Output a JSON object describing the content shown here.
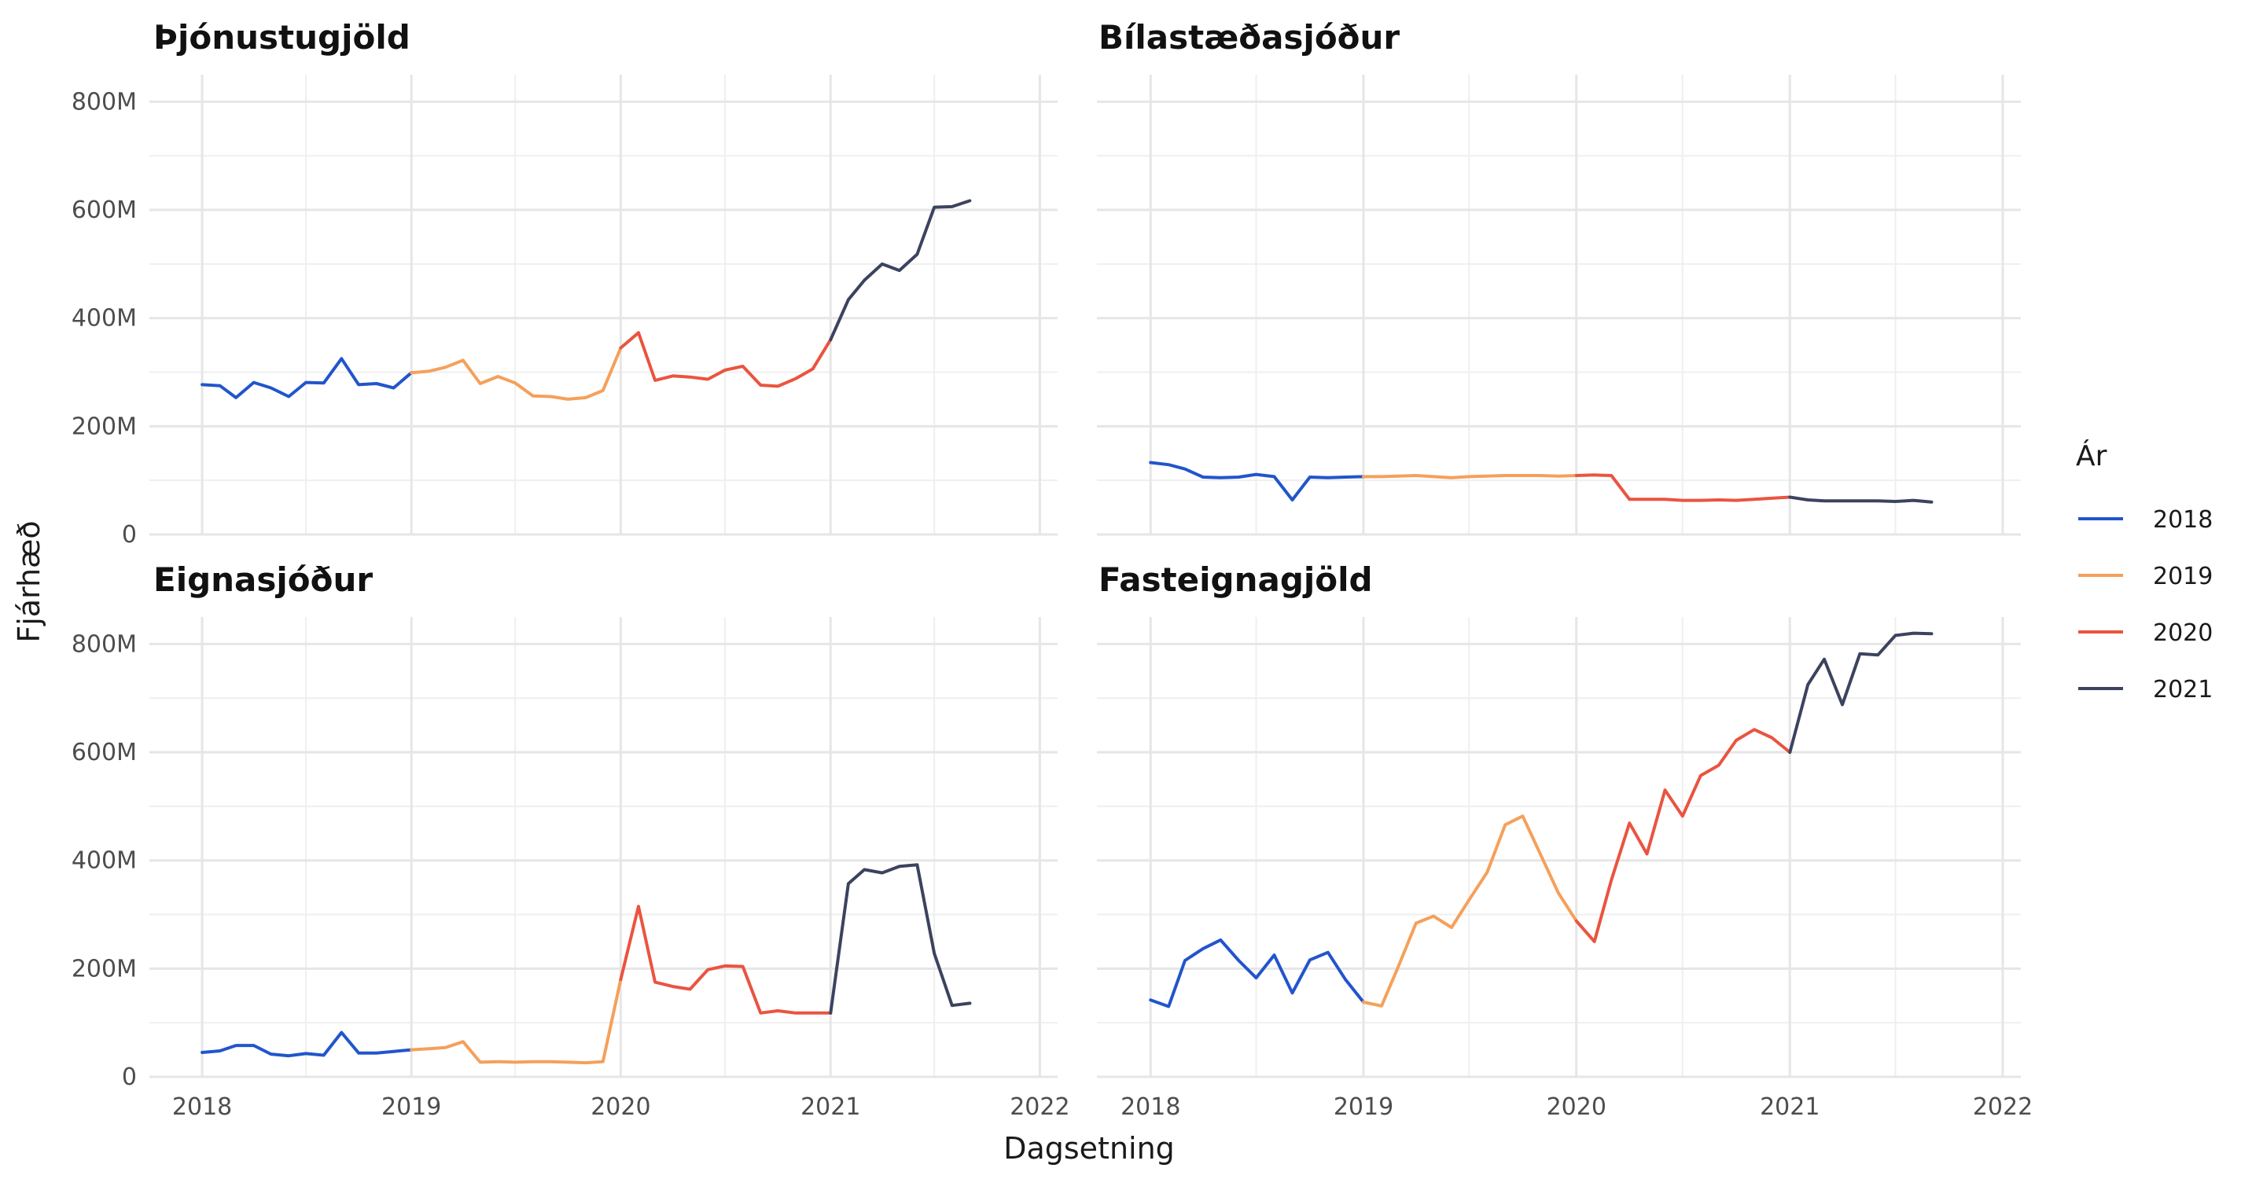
{
  "chart_data": {
    "type": "line",
    "xlabel": "Dagsetning",
    "ylabel": "Fjárhæð",
    "xlim": [
      "2017-10-01",
      "2022-02-01"
    ],
    "ylim": [
      0,
      850
    ],
    "x_ticks": [
      "2018",
      "2019",
      "2020",
      "2021",
      "2022"
    ],
    "y_ticks": [
      "0",
      "200M",
      "400M",
      "600M",
      "800M"
    ],
    "grid": true,
    "legend": {
      "title": "Ár",
      "position": "right",
      "entries": [
        {
          "label": "2018",
          "color": "#2255cc"
        },
        {
          "label": "2019",
          "color": "#f5a05a"
        },
        {
          "label": "2020",
          "color": "#ea5440"
        },
        {
          "label": "2021",
          "color": "#3c435f"
        }
      ]
    },
    "panels": [
      {
        "title": "Þjónustugjöld",
        "series": [
          {
            "name": "2018",
            "x": [
              "2018-01",
              "2018-02",
              "2018-03",
              "2018-04",
              "2018-05",
              "2018-06",
              "2018-07",
              "2018-08",
              "2018-09",
              "2018-10",
              "2018-11",
              "2018-12",
              "2019-01"
            ],
            "values": [
              277,
              275,
              253,
              281,
              271,
              255,
              281,
              280,
              325,
              277,
              279,
              271,
              299
            ]
          },
          {
            "name": "2019",
            "x": [
              "2019-01",
              "2019-02",
              "2019-03",
              "2019-04",
              "2019-05",
              "2019-06",
              "2019-07",
              "2019-08",
              "2019-09",
              "2019-10",
              "2019-11",
              "2019-12",
              "2020-01"
            ],
            "values": [
              299,
              302,
              309,
              322,
              279,
              292,
              280,
              256,
              255,
              250,
              253,
              266,
              345
            ]
          },
          {
            "name": "2020",
            "x": [
              "2020-01",
              "2020-02",
              "2020-03",
              "2020-04",
              "2020-05",
              "2020-06",
              "2020-07",
              "2020-08",
              "2020-09",
              "2020-10",
              "2020-11",
              "2020-12",
              "2021-01"
            ],
            "values": [
              345,
              373,
              285,
              293,
              291,
              287,
              304,
              311,
              276,
              274,
              288,
              306,
              360
            ]
          },
          {
            "name": "2021",
            "x": [
              "2021-01",
              "2021-02",
              "2021-03",
              "2021-04",
              "2021-05",
              "2021-06",
              "2021-07",
              "2021-08",
              "2021-09"
            ],
            "values": [
              360,
              434,
              470,
              500,
              488,
              518,
              605,
              606,
              617
            ]
          }
        ]
      },
      {
        "title": "Bílastæðasjóður",
        "series": [
          {
            "name": "2018",
            "x": [
              "2018-01",
              "2018-02",
              "2018-03",
              "2018-04",
              "2018-05",
              "2018-06",
              "2018-07",
              "2018-08",
              "2018-09",
              "2018-10",
              "2018-11",
              "2018-12",
              "2019-01"
            ],
            "values": [
              133,
              129,
              121,
              106,
              105,
              106,
              111,
              107,
              64,
              106,
              105,
              106,
              107
            ]
          },
          {
            "name": "2019",
            "x": [
              "2019-01",
              "2019-02",
              "2019-03",
              "2019-04",
              "2019-05",
              "2019-06",
              "2019-07",
              "2019-08",
              "2019-09",
              "2019-10",
              "2019-11",
              "2019-12",
              "2020-01"
            ],
            "values": [
              107,
              107,
              108,
              109,
              107,
              105,
              107,
              108,
              109,
              109,
              109,
              108,
              109
            ]
          },
          {
            "name": "2020",
            "x": [
              "2020-01",
              "2020-02",
              "2020-03",
              "2020-04",
              "2020-05",
              "2020-06",
              "2020-07",
              "2020-08",
              "2020-09",
              "2020-10",
              "2020-11",
              "2020-12",
              "2021-01"
            ],
            "values": [
              109,
              110,
              109,
              65,
              65,
              65,
              63,
              63,
              64,
              63,
              65,
              67,
              69
            ]
          },
          {
            "name": "2021",
            "x": [
              "2021-01",
              "2021-02",
              "2021-03",
              "2021-04",
              "2021-05",
              "2021-06",
              "2021-07",
              "2021-08",
              "2021-09"
            ],
            "values": [
              69,
              64,
              62,
              62,
              62,
              62,
              61,
              63,
              60
            ]
          }
        ]
      },
      {
        "title": "Eignasjóður",
        "series": [
          {
            "name": "2018",
            "x": [
              "2018-01",
              "2018-02",
              "2018-03",
              "2018-04",
              "2018-05",
              "2018-06",
              "2018-07",
              "2018-08",
              "2018-09",
              "2018-10",
              "2018-11",
              "2018-12",
              "2019-01"
            ],
            "values": [
              45,
              48,
              58,
              58,
              42,
              39,
              43,
              40,
              82,
              44,
              44,
              47,
              50
            ]
          },
          {
            "name": "2019",
            "x": [
              "2019-01",
              "2019-02",
              "2019-03",
              "2019-04",
              "2019-05",
              "2019-06",
              "2019-07",
              "2019-08",
              "2019-09",
              "2019-10",
              "2019-11",
              "2019-12",
              "2020-01"
            ],
            "values": [
              50,
              52,
              54,
              65,
              27,
              28,
              27,
              28,
              28,
              27,
              26,
              28,
              180
            ]
          },
          {
            "name": "2020",
            "x": [
              "2020-01",
              "2020-02",
              "2020-03",
              "2020-04",
              "2020-05",
              "2020-06",
              "2020-07",
              "2020-08",
              "2020-09",
              "2020-10",
              "2020-11",
              "2020-12",
              "2021-01"
            ],
            "values": [
              180,
              315,
              175,
              167,
              162,
              198,
              205,
              204,
              118,
              122,
              118,
              118,
              118
            ]
          },
          {
            "name": "2021",
            "x": [
              "2021-01",
              "2021-02",
              "2021-03",
              "2021-04",
              "2021-05",
              "2021-06",
              "2021-07",
              "2021-08",
              "2021-09"
            ],
            "values": [
              118,
              357,
              383,
              377,
              389,
              392,
              228,
              132,
              136
            ]
          }
        ]
      },
      {
        "title": "Fasteignagjöld",
        "series": [
          {
            "name": "2018",
            "x": [
              "2018-01",
              "2018-02",
              "2018-03",
              "2018-04",
              "2018-05",
              "2018-06",
              "2018-07",
              "2018-08",
              "2018-09",
              "2018-10",
              "2018-11",
              "2018-12",
              "2019-01"
            ],
            "values": [
              142,
              130,
              215,
              237,
              253,
              215,
              183,
              225,
              155,
              216,
              230,
              180,
              138
            ]
          },
          {
            "name": "2019",
            "x": [
              "2019-01",
              "2019-02",
              "2019-03",
              "2019-04",
              "2019-05",
              "2019-06",
              "2019-07",
              "2019-08",
              "2019-09",
              "2019-10",
              "2019-11",
              "2019-12",
              "2020-01"
            ],
            "values": [
              138,
              131,
              202,
              284,
              297,
              276,
              327,
              378,
              466,
              482,
              410,
              340,
              288
            ]
          },
          {
            "name": "2020",
            "x": [
              "2020-01",
              "2020-02",
              "2020-03",
              "2020-04",
              "2020-05",
              "2020-06",
              "2020-07",
              "2020-08",
              "2020-09",
              "2020-10",
              "2020-11",
              "2020-12",
              "2021-01"
            ],
            "values": [
              288,
              250,
              364,
              469,
              412,
              530,
              482,
              557,
              576,
              622,
              642,
              627,
              600
            ]
          },
          {
            "name": "2021",
            "x": [
              "2021-01",
              "2021-02",
              "2021-03",
              "2021-04",
              "2021-05",
              "2021-06",
              "2021-07",
              "2021-08",
              "2021-09"
            ],
            "values": [
              600,
              725,
              772,
              688,
              782,
              780,
              816,
              820,
              819
            ]
          }
        ]
      }
    ]
  }
}
